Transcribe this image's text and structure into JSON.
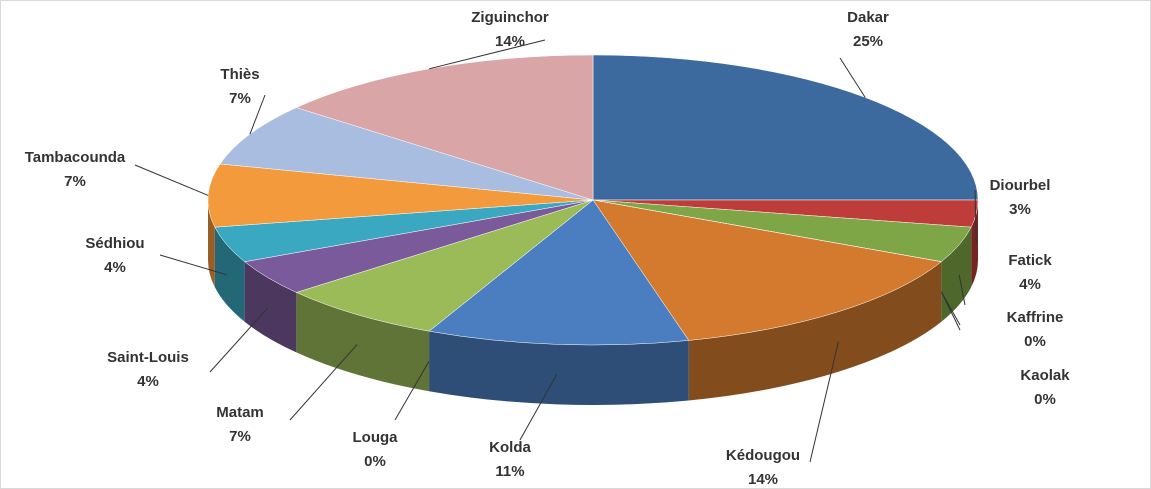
{
  "chart_data": {
    "type": "pie3d",
    "categories": [
      "Dakar",
      "Diourbel",
      "Fatick",
      "Kaffrine",
      "Kaolak",
      "Kédougou",
      "Kolda",
      "Louga",
      "Matam",
      "Saint-Louis",
      "Sédhiou",
      "Tambacounda",
      "Thiès",
      "Ziguinchor"
    ],
    "values": [
      25,
      3,
      4,
      0,
      0,
      14,
      11,
      0,
      7,
      4,
      4,
      7,
      7,
      14
    ],
    "value_labels": [
      "25%",
      "3%",
      "4%",
      "0%",
      "0%",
      "14%",
      "11%",
      "0%",
      "7%",
      "4%",
      "4%",
      "7%",
      "7%",
      "14%"
    ],
    "colors": [
      "#3d6a9e",
      "#be3c39",
      "#7ea646",
      "#7b5c9c",
      "#3aa7c1",
      "#d47a2f",
      "#4a7ec0",
      "#c0504d",
      "#9bbb59",
      "#7a5a9a",
      "#3aa8c0",
      "#f39a3c",
      "#a9bde0",
      "#d9a5a7"
    ]
  }
}
